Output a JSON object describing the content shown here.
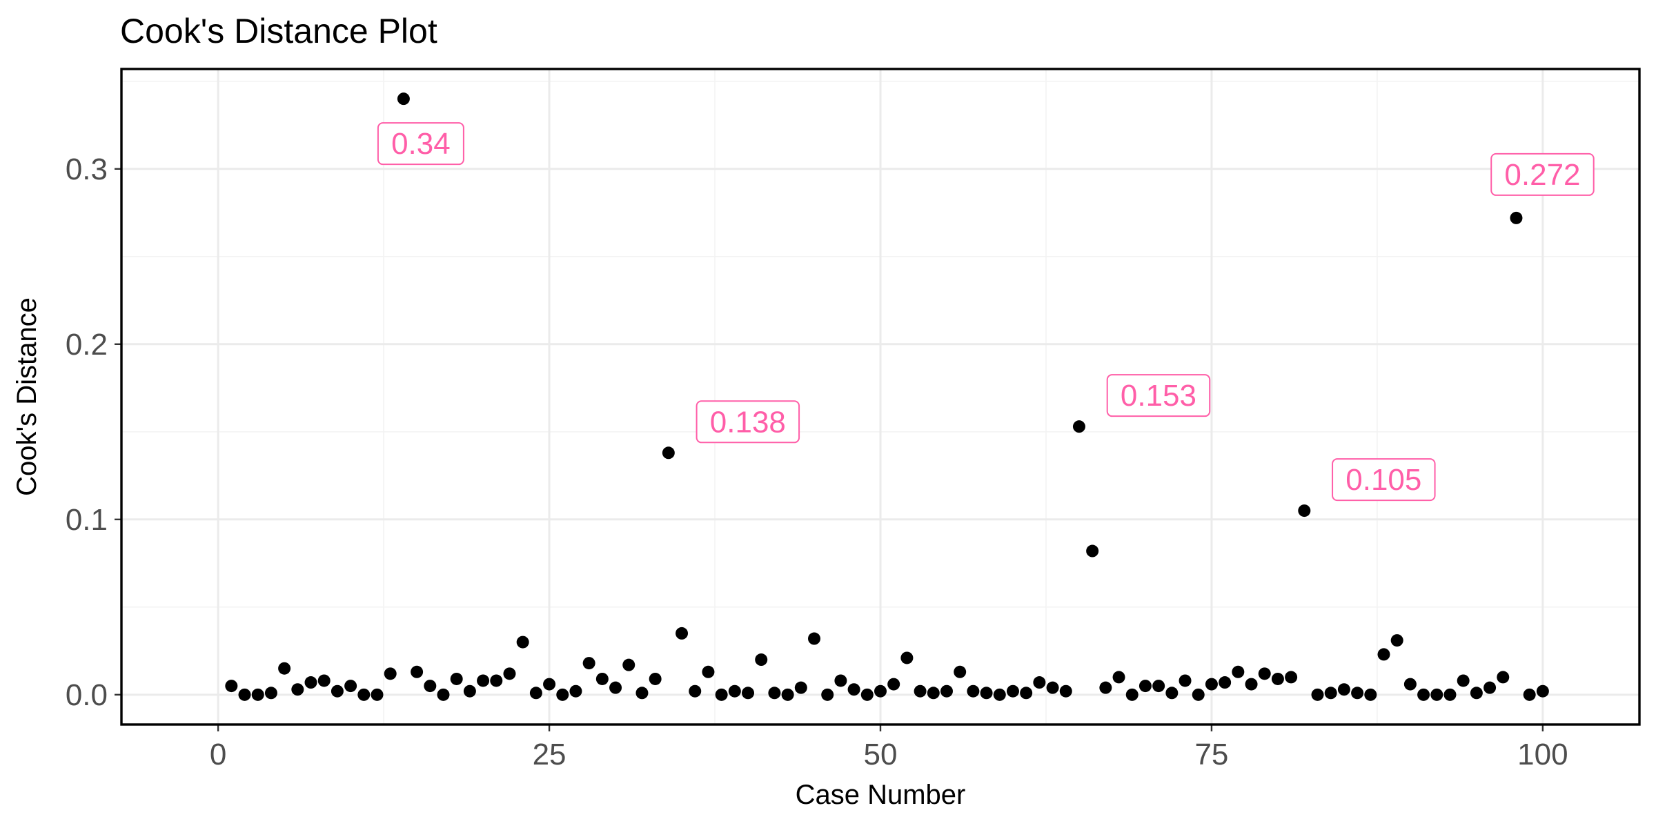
{
  "chart_data": {
    "type": "scatter",
    "title": "Cook's Distance Plot",
    "xlabel": "Case Number",
    "ylabel": "Cook's Distance",
    "xlim": [
      -7.3,
      107.3
    ],
    "ylim": [
      -0.017,
      0.357
    ],
    "xticks": [
      0,
      25,
      50,
      75,
      100
    ],
    "xtick_labels": [
      "0",
      "25",
      "50",
      "75",
      "100"
    ],
    "yticks": [
      0.0,
      0.1,
      0.2,
      0.3
    ],
    "ytick_labels": [
      "0.0",
      "0.1",
      "0.2",
      "0.3"
    ],
    "grid": true,
    "point_color": "#000000",
    "label_color": "#ff5ea8",
    "x": [
      1,
      2,
      3,
      4,
      5,
      6,
      7,
      8,
      9,
      10,
      11,
      12,
      13,
      14,
      15,
      16,
      17,
      18,
      19,
      20,
      21,
      22,
      23,
      24,
      25,
      26,
      27,
      28,
      29,
      30,
      31,
      32,
      33,
      34,
      35,
      36,
      37,
      38,
      39,
      40,
      41,
      42,
      43,
      44,
      45,
      46,
      47,
      48,
      49,
      50,
      51,
      52,
      53,
      54,
      55,
      56,
      57,
      58,
      59,
      60,
      61,
      62,
      63,
      64,
      65,
      66,
      67,
      68,
      69,
      70,
      71,
      72,
      73,
      74,
      75,
      76,
      77,
      78,
      79,
      80,
      81,
      82,
      83,
      84,
      85,
      86,
      87,
      88,
      89,
      90,
      91,
      92,
      93,
      94,
      95,
      96,
      97,
      98,
      99,
      100
    ],
    "y": [
      0.005,
      0.0,
      0.0,
      0.001,
      0.015,
      0.003,
      0.007,
      0.008,
      0.002,
      0.005,
      0.0,
      0.0,
      0.012,
      0.34,
      0.013,
      0.005,
      0.0,
      0.009,
      0.002,
      0.008,
      0.008,
      0.012,
      0.03,
      0.001,
      0.006,
      0.0,
      0.002,
      0.018,
      0.009,
      0.004,
      0.017,
      0.001,
      0.009,
      0.138,
      0.035,
      0.002,
      0.013,
      0.0,
      0.002,
      0.001,
      0.02,
      0.001,
      0.0,
      0.004,
      0.032,
      0.0,
      0.008,
      0.003,
      0.0,
      0.002,
      0.006,
      0.021,
      0.002,
      0.001,
      0.002,
      0.013,
      0.002,
      0.001,
      0.0,
      0.002,
      0.001,
      0.007,
      0.004,
      0.002,
      0.153,
      0.082,
      0.004,
      0.01,
      0.0,
      0.005,
      0.005,
      0.001,
      0.008,
      0.0,
      0.006,
      0.007,
      0.013,
      0.006,
      0.012,
      0.009,
      0.01,
      0.105,
      0.0,
      0.001,
      0.003,
      0.001,
      0.0,
      0.023,
      0.031,
      0.006,
      0.0,
      0.0,
      0.0,
      0.008,
      0.001,
      0.004,
      0.01,
      0.272,
      0.0,
      0.002
    ],
    "annotations": [
      {
        "case": 14,
        "value": 0.34,
        "text": "0.34",
        "position": "below"
      },
      {
        "case": 34,
        "value": 0.138,
        "text": "0.138",
        "position": "above-right"
      },
      {
        "case": 65,
        "value": 0.153,
        "text": "0.153",
        "position": "above-right"
      },
      {
        "case": 82,
        "value": 0.105,
        "text": "0.105",
        "position": "above-right"
      },
      {
        "case": 98,
        "value": 0.272,
        "text": "0.272",
        "position": "above"
      }
    ]
  }
}
